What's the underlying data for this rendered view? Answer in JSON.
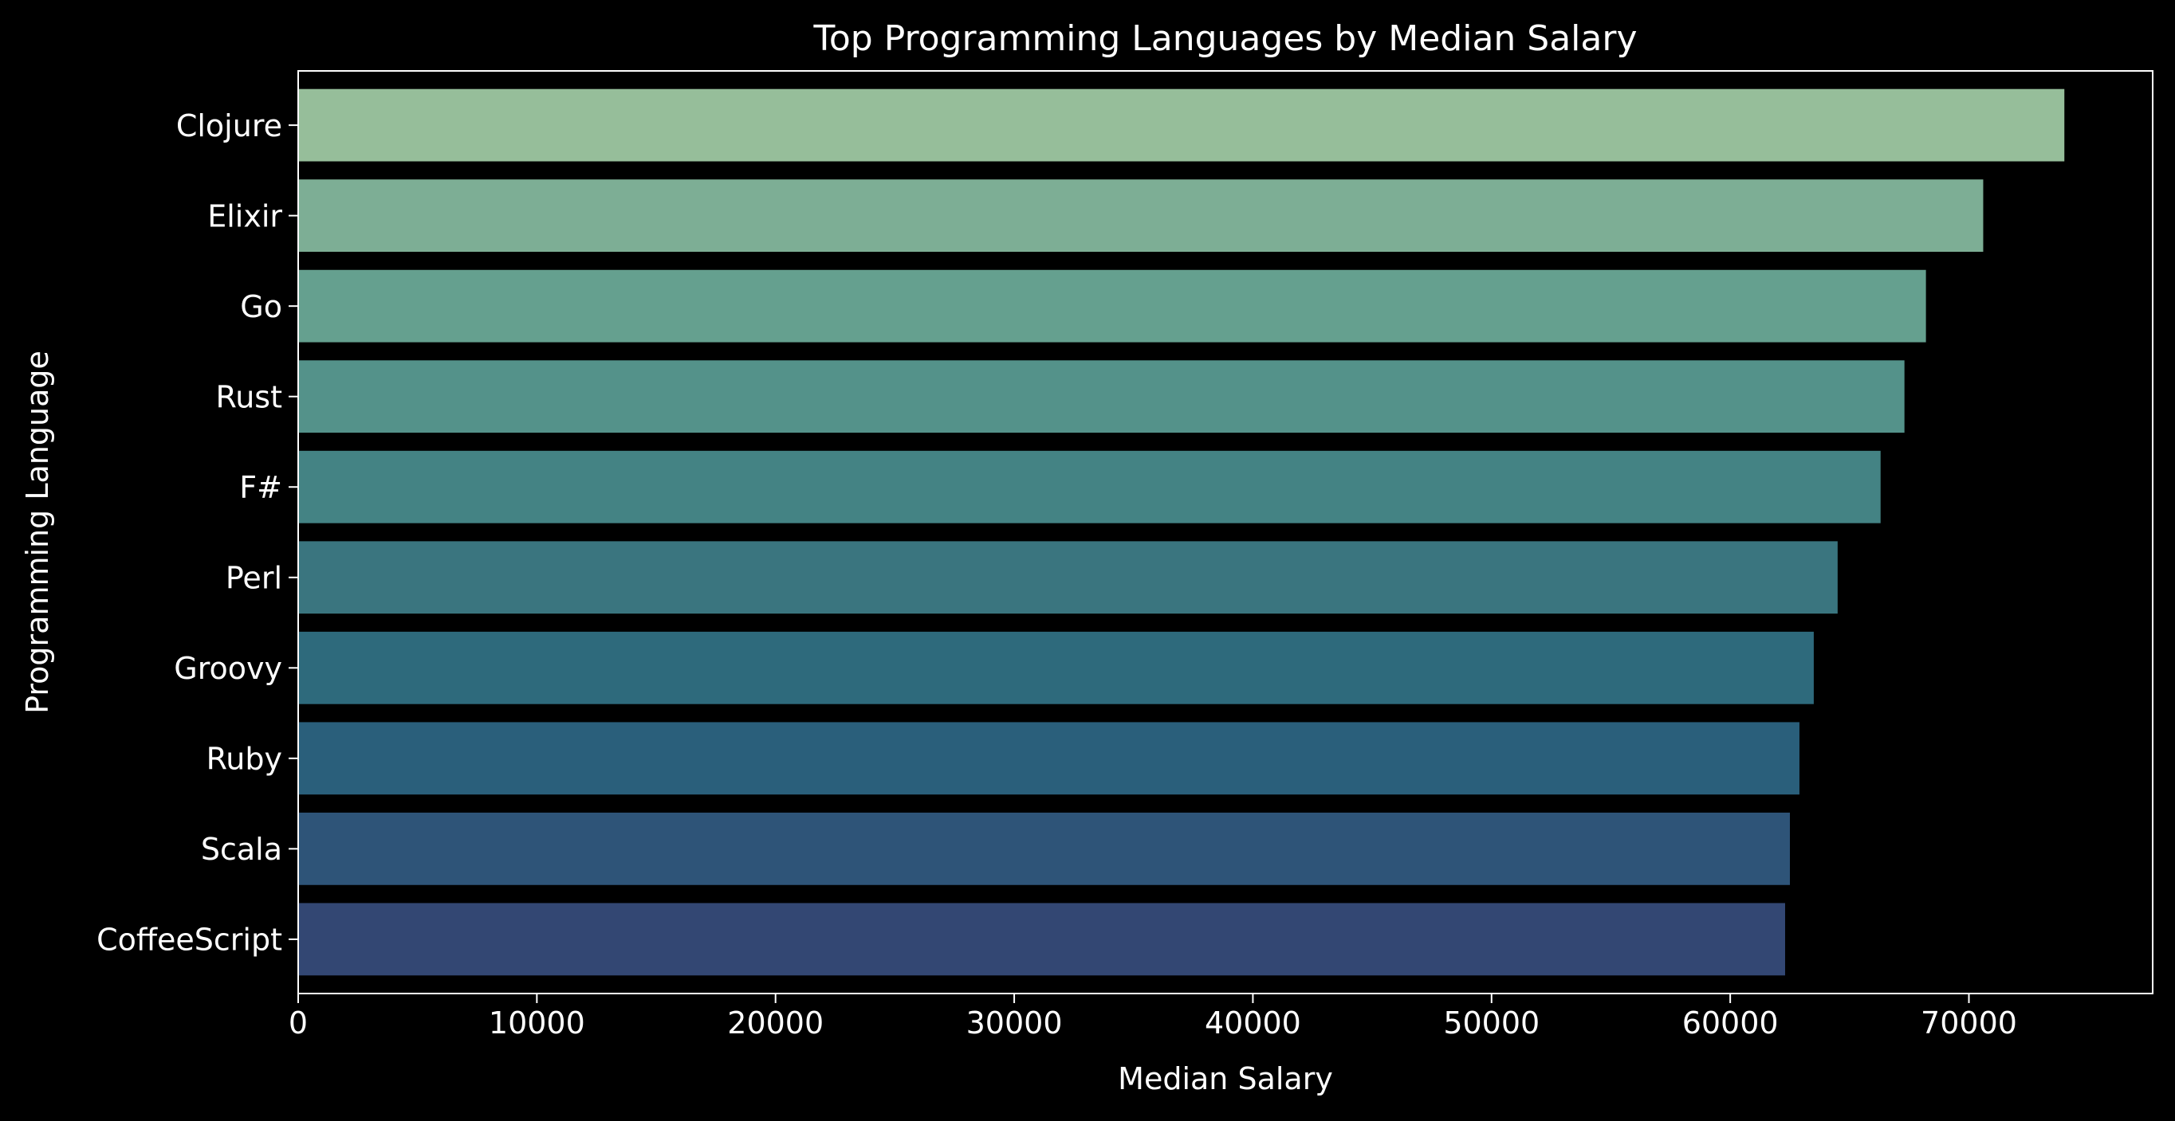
{
  "colors": {
    "background": "#000000",
    "foreground": "#ffffff",
    "bars": [
      "#96be9a",
      "#7dae95",
      "#65a08f",
      "#54928a",
      "#448384",
      "#3a757f",
      "#2e6a7c",
      "#2a5f7b",
      "#2e5478",
      "#334773"
    ]
  },
  "chart_data": {
    "type": "bar",
    "orientation": "horizontal",
    "title": "Top Programming Languages by Median Salary",
    "xlabel": "Median Salary",
    "ylabel": "Programming Language",
    "categories": [
      "Clojure",
      "Elixir",
      "Go",
      "Rust",
      "F#",
      "Perl",
      "Groovy",
      "Ruby",
      "Scala",
      "CoffeeScript"
    ],
    "values": [
      74000,
      70600,
      68200,
      67300,
      66300,
      64500,
      63500,
      62900,
      62500,
      62300
    ],
    "xlim": [
      0,
      77700
    ],
    "xticks": [
      0,
      10000,
      20000,
      30000,
      40000,
      50000,
      60000,
      70000
    ],
    "grid": false,
    "legend": "none"
  }
}
